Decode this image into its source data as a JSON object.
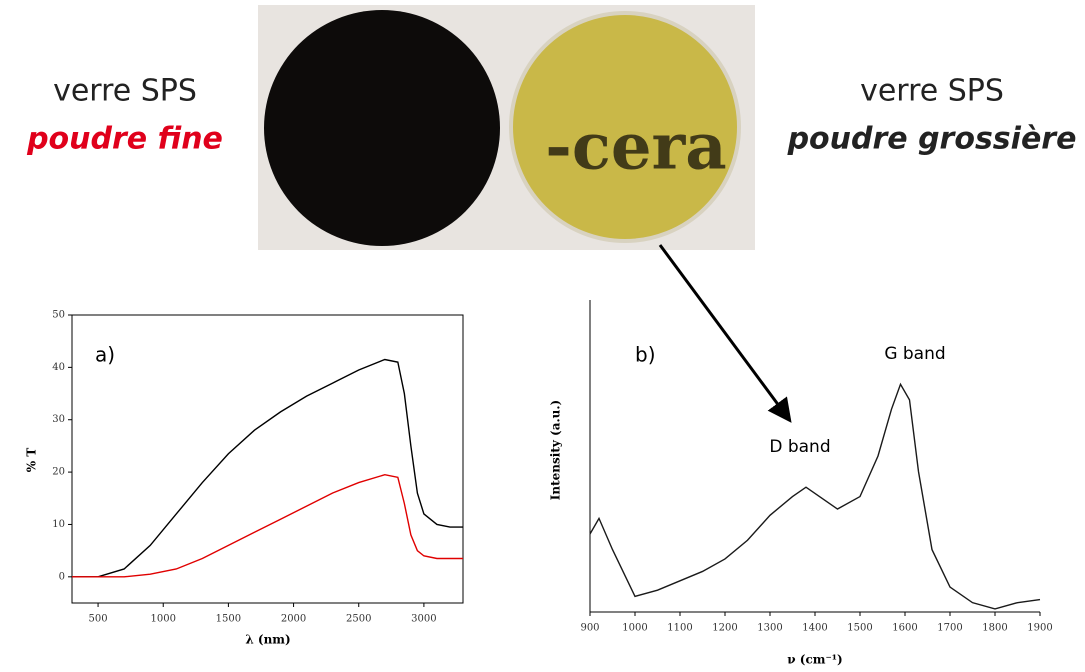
{
  "photo": {
    "text": "-cera",
    "left_label": {
      "line1": "verre SPS",
      "line2": "poudre fine"
    },
    "right_label": {
      "line1": "verre SPS",
      "line2": "poudre grossière"
    }
  },
  "chart_data": [
    {
      "type": "line",
      "panel_label": "a)",
      "x_label": "λ (nm)",
      "y_label": "% T",
      "x": [
        300,
        500,
        700,
        900,
        1100,
        1300,
        1500,
        1700,
        1900,
        2100,
        2300,
        2500,
        2700,
        2800,
        2850,
        2900,
        2950,
        3000,
        3100,
        3200,
        3300
      ],
      "series": [
        {
          "color": "#000000",
          "values": [
            0,
            0,
            1.5,
            6,
            12,
            18,
            23.5,
            28,
            31.5,
            34.5,
            37,
            39.5,
            41.5,
            41,
            35,
            25,
            16,
            12,
            10,
            9.5,
            9.5
          ]
        },
        {
          "color": "#e00000",
          "values": [
            0,
            0,
            0,
            0.5,
            1.5,
            3.5,
            6,
            8.5,
            11,
            13.5,
            16,
            18,
            19.5,
            19,
            14,
            8,
            5,
            4,
            3.5,
            3.5,
            3.5
          ]
        }
      ],
      "xlim": [
        300,
        3300
      ],
      "xticks": [
        500,
        1000,
        1500,
        2000,
        2500,
        3000
      ],
      "ylim": [
        -5,
        50
      ],
      "yticks": [
        0,
        10,
        20,
        30,
        40,
        50
      ]
    },
    {
      "type": "line",
      "panel_label": "b)",
      "x_label": "ν (cm⁻¹)",
      "y_label": "Intensity (a.u.)",
      "annotations": [
        "D band",
        "G band"
      ],
      "x": [
        900,
        920,
        950,
        1000,
        1050,
        1100,
        1150,
        1200,
        1250,
        1300,
        1350,
        1380,
        1420,
        1450,
        1500,
        1540,
        1570,
        1590,
        1610,
        1630,
        1660,
        1700,
        1750,
        1800,
        1850,
        1900
      ],
      "series": [
        {
          "color": "#1a1a1a",
          "values": [
            25,
            30,
            20,
            5,
            7,
            10,
            13,
            17,
            23,
            31,
            37,
            40,
            36,
            33,
            37,
            50,
            65,
            73,
            68,
            45,
            20,
            8,
            3,
            1,
            3,
            4
          ]
        }
      ],
      "xlim": [
        900,
        1900
      ],
      "xticks": [
        900,
        1000,
        1100,
        1200,
        1300,
        1400,
        1500,
        1600,
        1700,
        1800,
        1900
      ],
      "ylim": [
        0,
        100
      ]
    }
  ]
}
